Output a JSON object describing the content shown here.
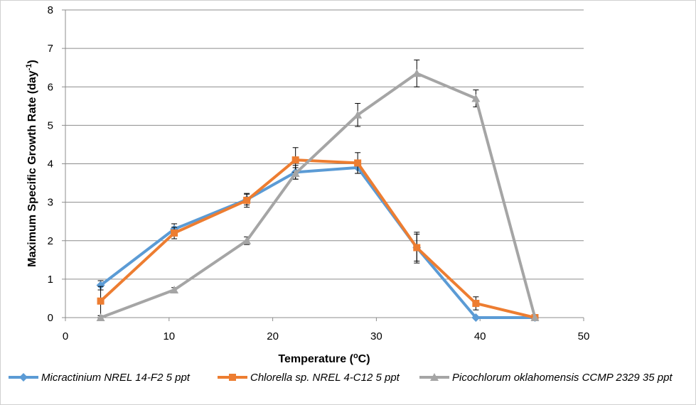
{
  "chart_data": {
    "type": "line",
    "xlabel": "Temperature (",
    "xlabel_sup": "o",
    "xlabel_end": "C)",
    "ylabel": "Maximum Specific Growth Rate (day",
    "ylabel_sup": "-1",
    "ylabel_end": ")",
    "xlim": [
      0,
      50
    ],
    "ylim": [
      0,
      8
    ],
    "x_ticks": [
      "0",
      "10",
      "20",
      "30",
      "40",
      "50"
    ],
    "y_ticks": [
      "0",
      "1",
      "2",
      "3",
      "4",
      "5",
      "6",
      "7",
      "8"
    ],
    "grid": true,
    "legend_position": "bottom",
    "series": [
      {
        "name": "Micractinium NREL 14-F2 5 ppt",
        "color": "#5B9BD5",
        "marker": "diamond",
        "x": [
          3.4,
          10.5,
          17.5,
          22.2,
          28.2,
          33.9,
          39.6,
          45.3
        ],
        "y": [
          0.84,
          2.3,
          3.07,
          3.78,
          3.9,
          1.82,
          0.0,
          0.0
        ],
        "err": [
          0.12,
          0.14,
          0.14,
          0.18,
          0.15,
          0.35,
          0.0,
          0.0
        ]
      },
      {
        "name": "Chlorella sp. NREL 4-C12 5 ppt",
        "color": "#ED7D31",
        "marker": "square",
        "x": [
          3.4,
          10.5,
          17.5,
          22.2,
          28.2,
          33.9,
          39.6,
          45.3
        ],
        "y": [
          0.43,
          2.2,
          3.05,
          4.1,
          4.02,
          1.82,
          0.37,
          0.0
        ],
        "err": [
          0.38,
          0.15,
          0.18,
          0.32,
          0.27,
          0.4,
          0.17,
          0.0
        ]
      },
      {
        "name": "Picochlorum oklahomensis CCMP 2329 35 ppt",
        "color": "#A5A5A5",
        "marker": "triangle",
        "x": [
          3.4,
          10.5,
          17.5,
          22.2,
          28.2,
          33.9,
          39.6,
          45.3
        ],
        "y": [
          0.0,
          0.72,
          2.0,
          3.75,
          5.27,
          6.35,
          5.7,
          0.0
        ],
        "err": [
          0.05,
          0.06,
          0.1,
          0.15,
          0.3,
          0.35,
          0.22,
          0.0
        ]
      }
    ]
  }
}
